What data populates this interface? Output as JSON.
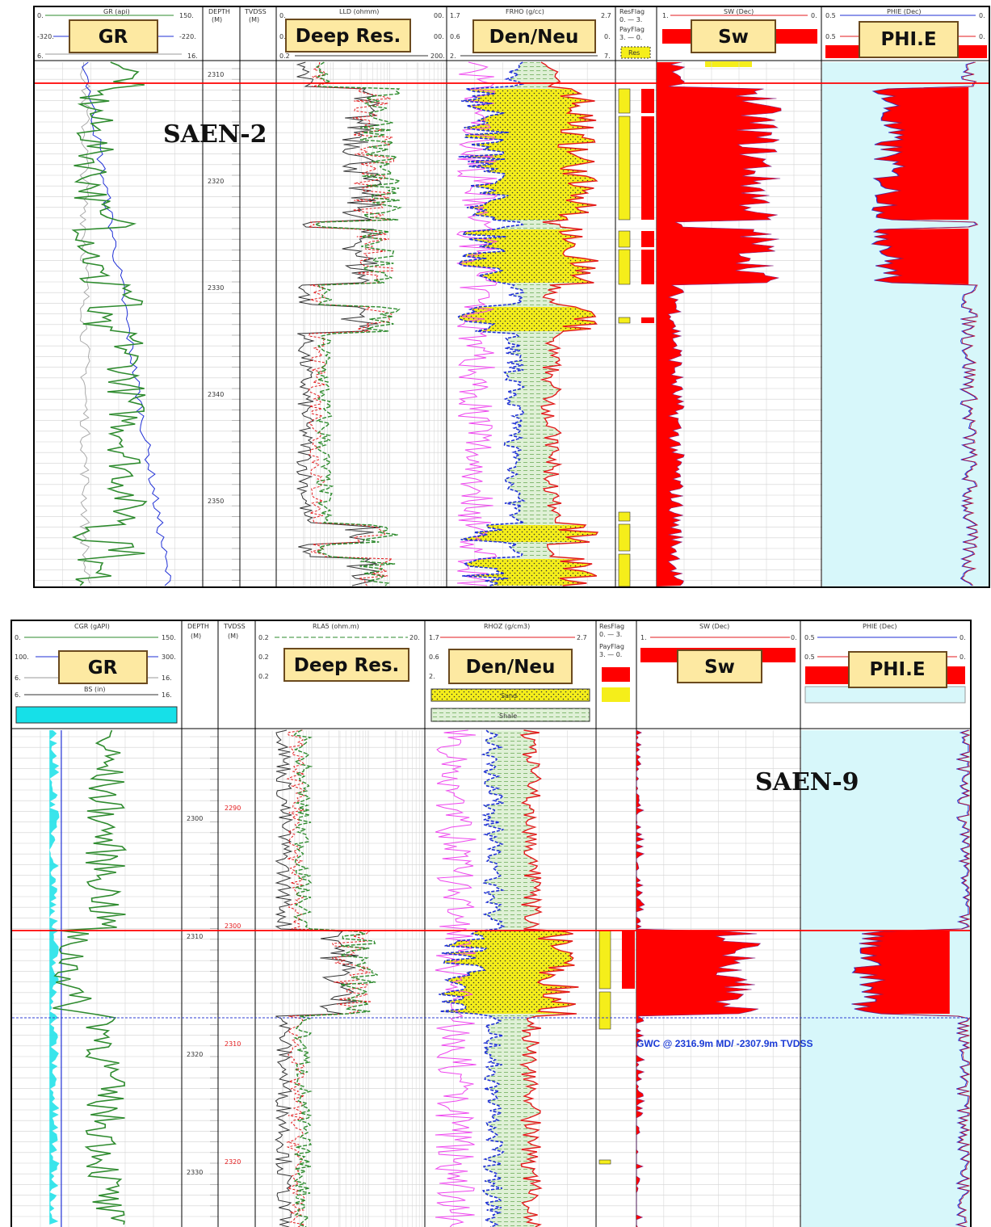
{
  "panels": [
    {
      "well_name": "SAEN-2",
      "depth_ticks": [
        "2310",
        "2320",
        "2330",
        "2340",
        "2350"
      ],
      "tracks": {
        "gr": {
          "title": "GR (api)",
          "scales": [
            [
              "0.",
              "150."
            ],
            [
              "-320.",
              "-220."
            ],
            [
              "6.",
              "16."
            ]
          ],
          "callout": "GR"
        },
        "depth": {
          "title": "DEPTH",
          "unit": "(M)"
        },
        "tvdss": {
          "title": "TVDSS",
          "unit": "(M)"
        },
        "res": {
          "title": "LLD (ohmm)",
          "scales": [
            [
              "0.",
              "00."
            ],
            [
              "0.",
              "00."
            ],
            [
              "0.2",
              "200."
            ]
          ],
          "callout": "Deep Res."
        },
        "denneu": {
          "title": "FRHO (g/cc)",
          "scales": [
            [
              "1.7",
              "2.7"
            ],
            [
              "0.6",
              "0."
            ],
            [
              "2.",
              "7."
            ]
          ],
          "callout": "Den/Neu"
        },
        "flag": {
          "title": "ResFlag",
          "scale1": "0. — 3.",
          "title2": "PayFlag",
          "scale2": "3. — 0.",
          "res_label": "Res"
        },
        "sw": {
          "title": "SW (Dec)",
          "scales": [
            [
              "1.",
              "0."
            ]
          ],
          "callout": "Sw"
        },
        "phie": {
          "title": "PHIE (Dec)",
          "scales": [
            [
              "0.5",
              "0."
            ],
            [
              "0.5",
              "0."
            ]
          ],
          "callout": "PHI.E"
        }
      }
    },
    {
      "well_name": "SAEN-9",
      "depth_ticks": [
        "2300",
        "2310",
        "2320",
        "2330"
      ],
      "tvdss_ticks": [
        "2290",
        "2300",
        "2310",
        "2320"
      ],
      "gwc_label": "GWC @ 2316.9m MD/ -2307.9m TVDSS",
      "tracks": {
        "gr": {
          "title": "CGR (gAPI)",
          "scales": [
            [
              "0.",
              "150."
            ],
            [
              "100.",
              "300."
            ],
            [
              "6.",
              "16."
            ],
            [
              "6.",
              "16."
            ]
          ],
          "sub_title": "BS (in)",
          "callout": "GR"
        },
        "depth": {
          "title": "DEPTH",
          "unit": "(M)"
        },
        "tvdss": {
          "title": "TVDSS",
          "unit": "(M)"
        },
        "res": {
          "title": "RLA5 (ohm.m)",
          "scales": [
            [
              "0.2",
              "20."
            ],
            [
              "0.2",
              ""
            ],
            [
              "0.2",
              ""
            ]
          ],
          "callout": "Deep Res."
        },
        "denneu": {
          "title": "RHOZ (g/cm3)",
          "scales": [
            [
              "1.7",
              "2.7"
            ],
            [
              "0.6",
              ""
            ],
            [
              "2.",
              ""
            ]
          ],
          "callout": "Den/Neu",
          "legend_sand": "Sand",
          "legend_shale": "Shale"
        },
        "flag": {
          "title": "ResFlag",
          "scale1": "0. — 3.",
          "title2": "PayFlag",
          "scale2": "3. — 0."
        },
        "sw": {
          "title": "SW (Dec)",
          "scales": [
            [
              "1.",
              "0."
            ]
          ],
          "callout": "Sw"
        },
        "phie": {
          "title": "PHIE (Dec)",
          "scales": [
            [
              "0.5",
              "0."
            ],
            [
              "0.5",
              "0."
            ]
          ],
          "callout": "PHI.E"
        }
      }
    }
  ],
  "colors": {
    "gr_curve": "#2e8b2e",
    "neutron_curve": "#1f2fd6",
    "density_curve": "#e31a1c",
    "sand_fill": "#f5ee1a",
    "shale_fill": "#cfe9c4",
    "sw_fill": "#ff0000",
    "phie_fill": "#ff0000",
    "phie_bg": "#d7f7fa",
    "callout_fill": "#fde9a2",
    "callout_border": "#6b4a1e",
    "contact_line": "#ff0000",
    "gwc_line": "#2f3fd6"
  }
}
